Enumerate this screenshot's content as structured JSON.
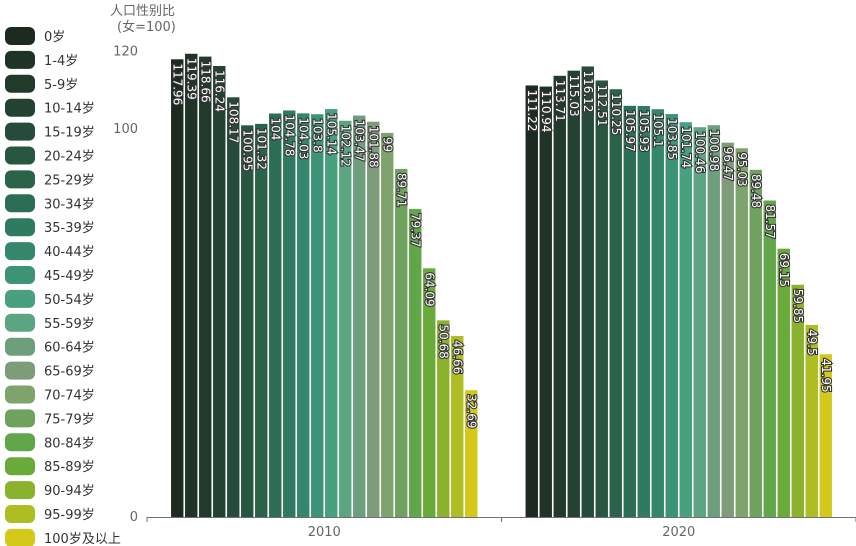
{
  "chart_data": {
    "type": "bar",
    "ylabel": "人口性别比",
    "ylabel_sub": "(女=100)",
    "ylim": [
      0,
      120
    ],
    "yticks": [
      0,
      100,
      120
    ],
    "grid": false,
    "legend_position": "left",
    "categories": [
      "2010",
      "2020"
    ],
    "series": [
      {
        "name": "0岁",
        "color": "#1c2a1f",
        "values": [
          117.96,
          111.22
        ]
      },
      {
        "name": "1-4岁",
        "color": "#1f3327",
        "values": [
          119.39,
          110.94
        ]
      },
      {
        "name": "5-9岁",
        "color": "#223a2c",
        "values": [
          118.66,
          113.71
        ]
      },
      {
        "name": "10-14岁",
        "color": "#244232",
        "values": [
          116.24,
          115.03
        ]
      },
      {
        "name": "15-19岁",
        "color": "#264b3a",
        "values": [
          108.17,
          116.12
        ]
      },
      {
        "name": "20-24岁",
        "color": "#295641",
        "values": [
          100.95,
          112.51
        ]
      },
      {
        "name": "25-29岁",
        "color": "#2a624a",
        "values": [
          101.32,
          110.25
        ]
      },
      {
        "name": "30-34岁",
        "color": "#2c6e55",
        "values": [
          104,
          105.97
        ]
      },
      {
        "name": "35-39岁",
        "color": "#307a60",
        "values": [
          104.78,
          105.93
        ]
      },
      {
        "name": "40-44岁",
        "color": "#35876b",
        "values": [
          104.03,
          105.1
        ]
      },
      {
        "name": "45-49岁",
        "color": "#3d9375",
        "values": [
          103.8,
          103.85
        ]
      },
      {
        "name": "50-54岁",
        "color": "#48a07f",
        "values": [
          105.14,
          101.74
        ]
      },
      {
        "name": "55-59岁",
        "color": "#5ba583",
        "values": [
          102.12,
          100.46
        ]
      },
      {
        "name": "60-64岁",
        "color": "#6e9f7d",
        "values": [
          103.47,
          100.98
        ]
      },
      {
        "name": "65-69岁",
        "color": "#7f9c7a",
        "values": [
          101.88,
          96.47
        ]
      },
      {
        "name": "70-74岁",
        "color": "#7fa36d",
        "values": [
          99,
          95.03
        ]
      },
      {
        "name": "75-79岁",
        "color": "#6fa25f",
        "values": [
          89.71,
          89.48
        ]
      },
      {
        "name": "80-84岁",
        "color": "#61a649",
        "values": [
          79.37,
          81.57
        ]
      },
      {
        "name": "85-89岁",
        "color": "#6aaa3a",
        "values": [
          64.09,
          69.15
        ]
      },
      {
        "name": "90-94岁",
        "color": "#8bb22d",
        "values": [
          50.68,
          59.85
        ]
      },
      {
        "name": "95-99岁",
        "color": "#aebd22",
        "values": [
          46.66,
          49.5
        ]
      },
      {
        "name": "100岁及以上",
        "color": "#d2c91a",
        "values": [
          32.69,
          41.95
        ]
      }
    ]
  }
}
